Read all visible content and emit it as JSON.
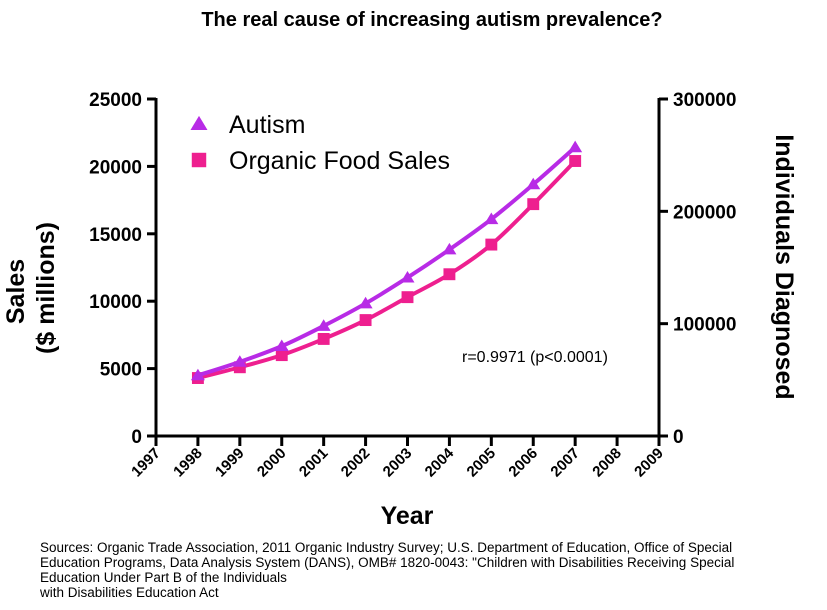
{
  "chart_data": {
    "type": "line",
    "title": "The real cause of increasing autism prevalence?",
    "xlabel": "Year",
    "ylabel_left_lines": [
      "Sales",
      "($ millions)"
    ],
    "ylabel_right": "Individuals Diagnosed",
    "xlim": [
      1997,
      2009
    ],
    "x_ticks": [
      "1997",
      "1998",
      "1999",
      "2000",
      "2001",
      "2002",
      "2003",
      "2004",
      "2005",
      "2006",
      "2007",
      "2008",
      "2009"
    ],
    "ylim_left": [
      0,
      25000
    ],
    "y_ticks_left": [
      "0",
      "5000",
      "10000",
      "15000",
      "20000",
      "25000"
    ],
    "ylim_right": [
      0,
      300000
    ],
    "y_ticks_right": [
      "0",
      "100000",
      "200000",
      "300000"
    ],
    "annotation": "r=0.9971 (p<0.0001)",
    "legend_position": "top-left",
    "grid": false,
    "series": [
      {
        "name": "Autism",
        "axis": "right",
        "marker": "triangle",
        "color": "#B82BE6",
        "x": [
          1998,
          1999,
          2000,
          2001,
          2002,
          2003,
          2004,
          2005,
          2006,
          2007
        ],
        "values": [
          54000,
          66000,
          80000,
          98000,
          118000,
          141000,
          166000,
          193000,
          224000,
          257000
        ]
      },
      {
        "name": "Organic Food Sales",
        "axis": "left",
        "marker": "square",
        "color": "#EE1F8F",
        "x": [
          1998,
          1999,
          2000,
          2001,
          2002,
          2003,
          2004,
          2005,
          2006,
          2007
        ],
        "values": [
          4300,
          5100,
          6000,
          7200,
          8600,
          10300,
          12000,
          14200,
          17200,
          20400
        ]
      }
    ]
  },
  "sources_lines": [
    "Sources: Organic Trade Association,  2011 Organic Industry Survey; U.S. Department of Education, Office of Special",
    "Education Programs, Data Analysis System (DANS), OMB# 1820-0043: \"Children with Disabilities Receiving Special",
    "Education Under Part B of the Individuals",
    "with Disabilities Education Act"
  ]
}
